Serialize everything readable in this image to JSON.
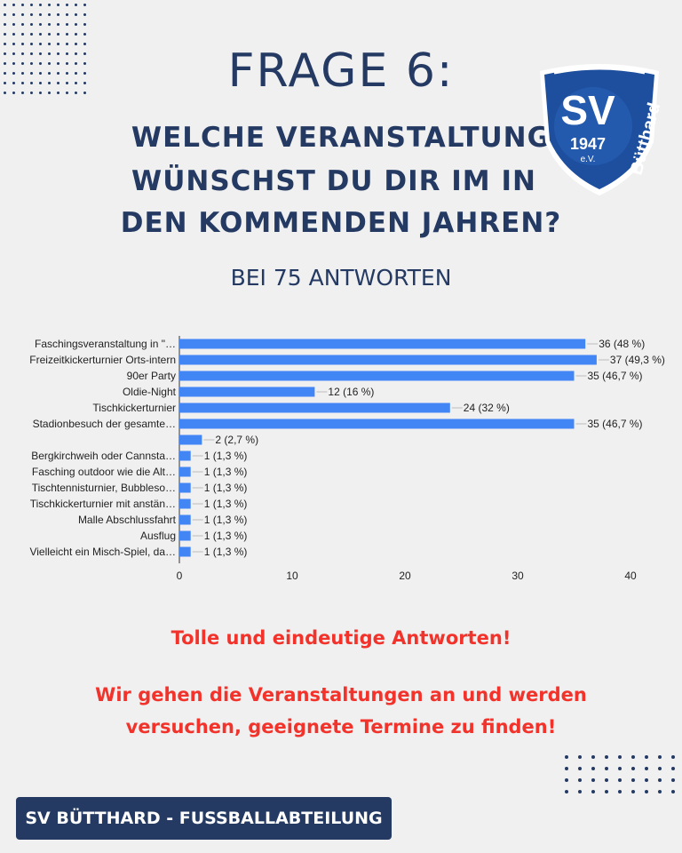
{
  "header": {
    "title": "FRAGE 6:",
    "question_lines": [
      "WELCHE VERANSTALTUNG",
      "WÜNSCHST DU DIR IM IN",
      "DEN KOMMENDEN JAHREN?"
    ],
    "subtitle": "BEI 75 ANTWORTEN"
  },
  "logo": {
    "text": "SV",
    "year": "1947",
    "suffix": "e.V.",
    "name": "Bütthard"
  },
  "chart_data": {
    "type": "bar",
    "orientation": "horizontal",
    "xlim": [
      0,
      40
    ],
    "xticks": [
      0,
      10,
      20,
      30,
      40
    ],
    "categories": [
      "Faschingsveranstaltung in \"…",
      "Freizeitkickerturnier Orts-intern",
      "90er Party",
      "Oldie-Night",
      "Tischkickerturnier",
      "Stadionbesuch der gesamte…",
      "",
      "Bergkirchweih oder Cannsta…",
      "Fasching outdoor wie die Alt…",
      "Tischtennisturnier, Bubbleso…",
      "Tischkickerturnier mit anstän…",
      "Malle Abschlussfahrt",
      "Ausflug",
      "Vielleicht ein Misch-Spiel, da…"
    ],
    "values": [
      36,
      37,
      35,
      12,
      24,
      35,
      2,
      1,
      1,
      1,
      1,
      1,
      1,
      1
    ],
    "data_labels": [
      "36 (48 %)",
      "37 (49,3 %)",
      "35 (46,7 %)",
      "12 (16 %)",
      "24 (32 %)",
      "35 (46,7 %)",
      "2 (2,7 %)",
      "1 (1,3 %)",
      "1 (1,3 %)",
      "1 (1,3 %)",
      "1 (1,3 %)",
      "1 (1,3 %)",
      "1 (1,3 %)",
      "1 (1,3 %)"
    ],
    "bar_color": "#4285f4"
  },
  "messages": {
    "line1": "Tolle und eindeutige Antworten!",
    "line2": "Wir gehen die Veranstaltungen an und werden",
    "line3": "versuchen, geeignete Termine zu finden!"
  },
  "footer": {
    "label": "SV BÜTTHARD - FUSSBALLABTEILUNG"
  }
}
